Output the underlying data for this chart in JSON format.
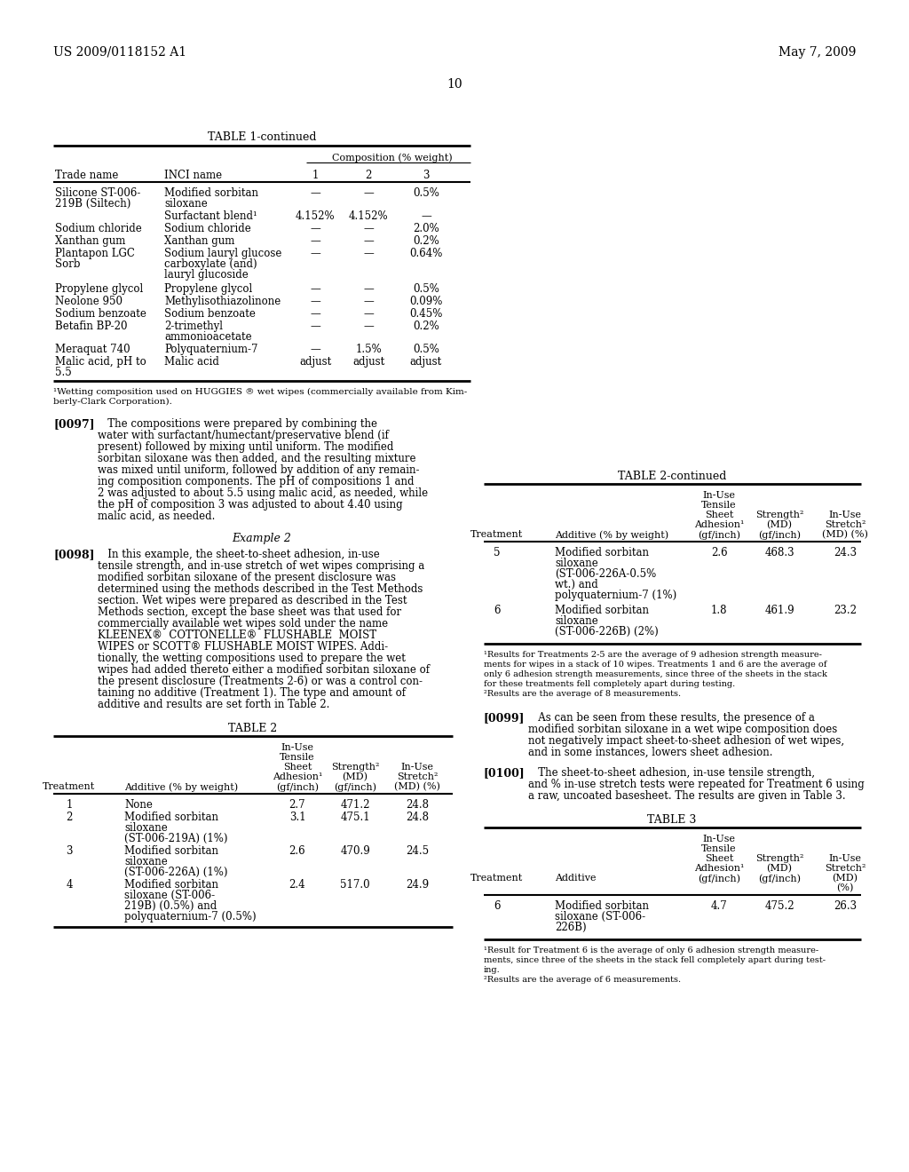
{
  "header_left": "US 2009/0118152 A1",
  "header_right": "May 7, 2009",
  "page_num": "10",
  "background": "#ffffff",
  "text_color": "#000000",
  "table1_title": "TABLE 1-continued",
  "table1_col_header": "Composition (% weight)",
  "table1_cols": [
    "Trade name",
    "INCI name",
    "1",
    "2",
    "3"
  ],
  "table1_rows": [
    [
      "Silicone ST-006-\n219B (Siltech)",
      "Modified sorbitan\nsiloxane",
      "—",
      "—",
      "0.5%"
    ],
    [
      "",
      "Surfactant blend¹",
      "4.152%",
      "4.152%",
      "—"
    ],
    [
      "Sodium chloride",
      "Sodium chloride",
      "—",
      "—",
      "2.0%"
    ],
    [
      "Xanthan gum",
      "Xanthan gum",
      "—",
      "—",
      "0.2%"
    ],
    [
      "Plantapon LGC\nSorb",
      "Sodium lauryl glucose\ncarboxylate (and)\nlauryl glucoside",
      "—",
      "—",
      "0.64%"
    ],
    [
      "Propylene glycol",
      "Propylene glycol",
      "—",
      "—",
      "0.5%"
    ],
    [
      "Neolone 950",
      "Methylisothiazolinone",
      "—",
      "—",
      "0.09%"
    ],
    [
      "Sodium benzoate",
      "Sodium benzoate",
      "—",
      "—",
      "0.45%"
    ],
    [
      "Betafin BP-20",
      "2-trimethyl\nammonioacetate",
      "—",
      "—",
      "0.2%"
    ],
    [
      "Meraquat 740",
      "Polyquaternium-7",
      "—",
      "1.5%",
      "0.5%"
    ],
    [
      "Malic acid, pH to\n5.5",
      "Malic acid",
      "adjust",
      "adjust",
      "adjust"
    ]
  ],
  "table1_footnote": "¹Wetting composition used on HUGGIES ® wet wipes (commercially available from Kim-\nberly-Clark Corporation).",
  "para0097_label": "[0097]",
  "para0097_text": "   The compositions were prepared by combining the\nwater with surfactant/humectant/preservative blend (if\npresent) followed by mixing until uniform. The modified\nsorbitan siloxane was then added, and the resulting mixture\nwas mixed until uniform, followed by addition of any remain-\ning composition components. The pH of compositions 1 and\n2 was adjusted to about 5.5 using malic acid, as needed, while\nthe pH of composition 3 was adjusted to about 4.40 using\nmalic acid, as needed.",
  "example2_title": "Example 2",
  "para0098_label": "[0098]",
  "para0098_text": "   In this example, the sheet-to-sheet adhesion, in-use\ntensile strength, and in-use stretch of wet wipes comprising a\nmodified sorbitan siloxane of the present disclosure was\ndetermined using the methods described in the Test Methods\nsection. Wet wipes were prepared as described in the Test\nMethods section, except the base sheet was that used for\ncommercially available wet wipes sold under the name\nKLEENEX®  COTTONELLE®  FLUSHABLE  MOIST\nWIPES or SCOTT® FLUSHABLE MOIST WIPES. Addi-\ntionally, the wetting compositions used to prepare the wet\nwipes had added thereto either a modified sorbitan siloxane of\nthe present disclosure (Treatments 2-6) or was a control con-\ntaining no additive (Treatment 1). The type and amount of\nadditive and results are set forth in Table 2.",
  "table2_title": "TABLE 2",
  "table2_col_headers_line1": [
    "",
    "",
    "In-Use",
    "",
    ""
  ],
  "table2_col_headers_line2": [
    "",
    "",
    "Tensile",
    "",
    ""
  ],
  "table2_col_headers_line3": [
    "",
    "",
    "Sheet",
    "Strength²",
    "In-Use"
  ],
  "table2_col_headers_line4": [
    "",
    "",
    "Adhesion¹",
    "(MD)",
    "Stretch²"
  ],
  "table2_col_headers_line5": [
    "Treatment",
    "Additive (% by weight)",
    "(gf/inch)",
    "(gf/inch)",
    "(MD) (%)"
  ],
  "table2_rows": [
    [
      "1",
      "None",
      "2.7",
      "471.2",
      "24.8"
    ],
    [
      "2",
      "Modified sorbitan\nsiloxane\n(ST-006-219A) (1%)",
      "3.1",
      "475.1",
      "24.8"
    ],
    [
      "3",
      "Modified sorbitan\nsiloxane\n(ST-006-226A) (1%)",
      "2.6",
      "470.9",
      "24.5"
    ],
    [
      "4",
      "Modified sorbitan\nsiloxane (ST-006-\n219B) (0.5%) and\npolyquaternium-7 (0.5%)",
      "2.4",
      "517.0",
      "24.9"
    ]
  ],
  "table2cont_title": "TABLE 2-continued",
  "table2cont_col_headers_line1": [
    "",
    "",
    "In-Use",
    "",
    ""
  ],
  "table2cont_col_headers_line2": [
    "",
    "",
    "Tensile",
    "",
    ""
  ],
  "table2cont_col_headers_line3": [
    "",
    "",
    "Sheet",
    "Strength²",
    "In-Use"
  ],
  "table2cont_col_headers_line4": [
    "",
    "",
    "Adhesion¹",
    "(MD)",
    "Stretch²"
  ],
  "table2cont_col_headers_line5": [
    "Treatment",
    "Additive (% by weight)",
    "(gf/inch)",
    "(gf/inch)",
    "(MD) (%)"
  ],
  "table2cont_rows": [
    [
      "5",
      "Modified sorbitan\nsiloxane\n(ST-006-226A-0.5%\nwt.) and\npolyquaternium-7 (1%)",
      "2.6",
      "468.3",
      "24.3"
    ],
    [
      "6",
      "Modified sorbitan\nsiloxane\n(ST-006-226B) (2%)",
      "1.8",
      "461.9",
      "23.2"
    ]
  ],
  "table2cont_footnote": "¹Results for Treatments 2-5 are the average of 9 adhesion strength measure-\nments for wipes in a stack of 10 wipes. Treatments 1 and 6 are the average of\nonly 6 adhesion strength measurements, since three of the sheets in the stack\nfor these treatments fell completely apart during testing.\n²Results are the average of 8 measurements.",
  "para0099_label": "[0099]",
  "para0099_text": "   As can be seen from these results, the presence of a\nmodified sorbitan siloxane in a wet wipe composition does\nnot negatively impact sheet-to-sheet adhesion of wet wipes,\nand in some instances, lowers sheet adhesion.",
  "para0100_label": "[0100]",
  "para0100_text": "   The sheet-to-sheet adhesion, in-use tensile strength,\nand % in-use stretch tests were repeated for Treatment 6 using\na raw, uncoated basesheet. The results are given in Table 3.",
  "table3_title": "TABLE 3",
  "table3_col_headers_line1": [
    "",
    "",
    "In-Use",
    "",
    ""
  ],
  "table3_col_headers_line2": [
    "",
    "",
    "Tensile",
    "",
    ""
  ],
  "table3_col_headers_line3": [
    "",
    "",
    "Sheet",
    "Strength²",
    "In-Use"
  ],
  "table3_col_headers_line4": [
    "",
    "",
    "Adhesion¹",
    "(MD)",
    "Stretch²"
  ],
  "table3_col_headers_line5": [
    "Treatment",
    "Additive",
    "(gf/inch)",
    "(gf/inch)",
    "(MD)\n(%)"
  ],
  "table3_rows": [
    [
      "6",
      "Modified sorbitan\nsiloxane (ST-006-\n226B)",
      "4.7",
      "475.2",
      "26.3"
    ]
  ],
  "table3_footnote": "¹Result for Treatment 6 is the average of only 6 adhesion strength measure-\nments, since three of the sheets in the stack fell completely apart during test-\ning.\n²Results are the average of 6 measurements."
}
